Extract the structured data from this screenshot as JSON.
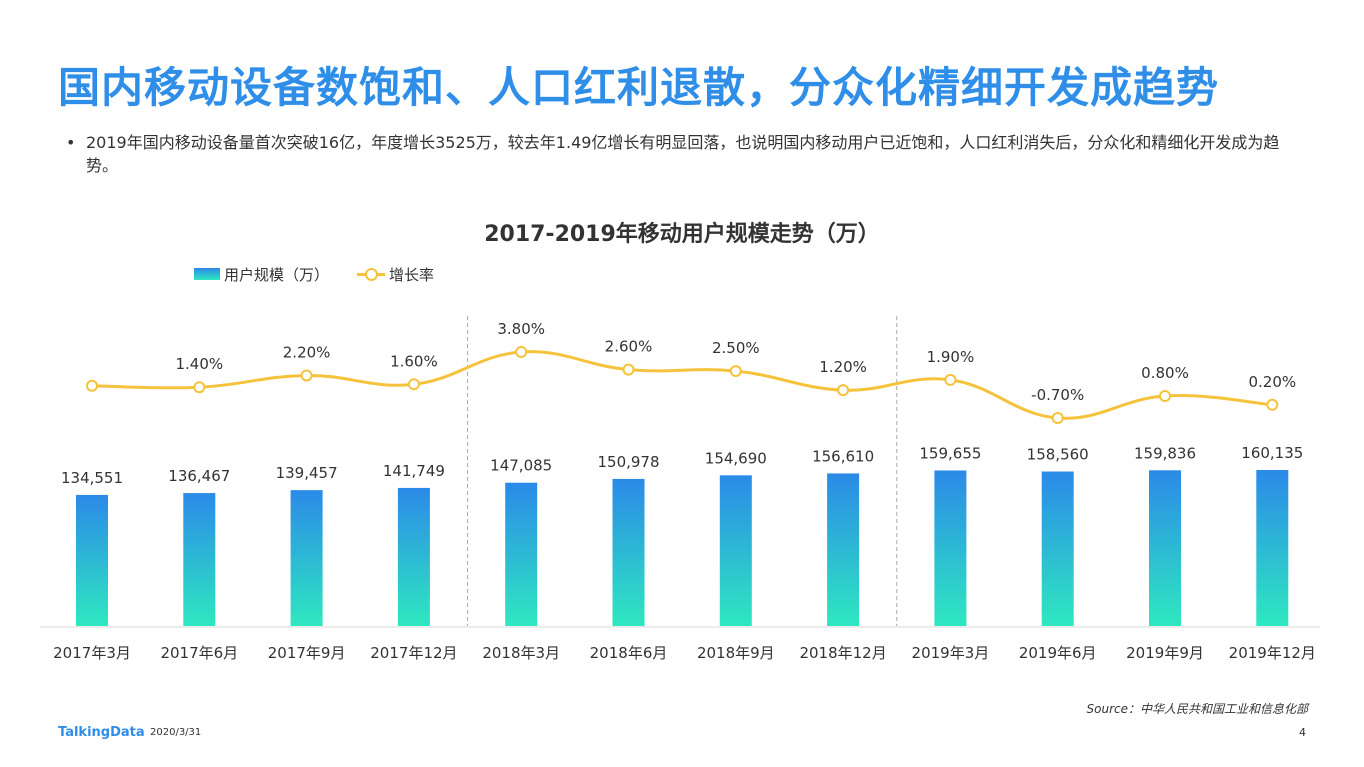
{
  "page": {
    "title": "国内移动设备数饱和、人口红利退散，分众化精细开发成趋势",
    "bullet_marker": "•",
    "bullet": "2019年国内移动设备量首次突破16亿，年度增长3525万，较去年1.49亿增长有明显回落，也说明国内移动用户已近饱和，人口红利消失后，分众化和精细化开发成为趋势。",
    "source": "Source：中华人民共和国工业和信息化部",
    "logo": "TalkingData",
    "date": "2020/3/31",
    "page_number": "4"
  },
  "colors": {
    "title": "#2f8ee8",
    "bar_top": "#2b8ae8",
    "bar_bottom": "#2ee8c0",
    "line": "#f5c33b"
  },
  "chart_data": {
    "type": "bar",
    "title": "2017-2019年移动用户规模走势（万）",
    "categories": [
      "2017年3月",
      "2017年6月",
      "2017年9月",
      "2017年12月",
      "2018年3月",
      "2018年6月",
      "2018年9月",
      "2018年12月",
      "2019年3月",
      "2019年6月",
      "2019年9月",
      "2019年12月"
    ],
    "series": [
      {
        "name": "用户规模（万）",
        "type": "bar",
        "values": [
          134551,
          136467,
          139457,
          141749,
          147085,
          150978,
          154690,
          156610,
          159655,
          158560,
          159836,
          160135
        ],
        "labels": [
          "134,551",
          "136,467",
          "139,457",
          "141,749",
          "147,085",
          "150,978",
          "154,690",
          "156,610",
          "159,655",
          "158,560",
          "159,836",
          "160,135"
        ]
      },
      {
        "name": "增长率",
        "type": "line",
        "values": [
          1.5,
          1.4,
          2.2,
          1.6,
          3.8,
          2.6,
          2.5,
          1.2,
          1.9,
          -0.7,
          0.8,
          0.2
        ],
        "labels": [
          "",
          "1.40%",
          "2.20%",
          "1.60%",
          "3.80%",
          "2.60%",
          "2.50%",
          "1.20%",
          "1.90%",
          "-0.70%",
          "0.80%",
          "0.20%"
        ]
      }
    ],
    "bar_ylim": [
      0,
      160135
    ],
    "line_ylim": [
      -0.7,
      3.8
    ],
    "legend_position": "top-left",
    "year_dividers_after": [
      "2017年12月",
      "2018年12月"
    ],
    "grid": false
  }
}
